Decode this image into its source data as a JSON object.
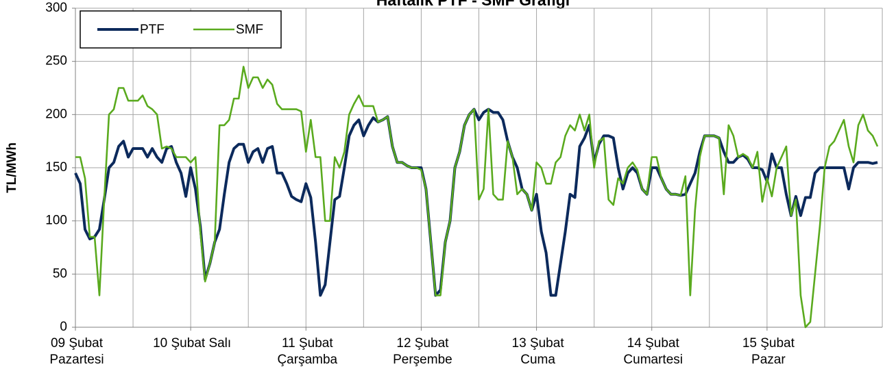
{
  "chart_data": {
    "type": "line",
    "title": "Haftalık PTF - SMF Grafiği",
    "y_label": "TL/MWh",
    "x": [
      0,
      1,
      2,
      3,
      4,
      5,
      6,
      7,
      8,
      9,
      10,
      11,
      12,
      13,
      14,
      15,
      16,
      17,
      18,
      19,
      20,
      21,
      22,
      23,
      24,
      25,
      26,
      27,
      28,
      29,
      30,
      31,
      32,
      33,
      34,
      35,
      36,
      37,
      38,
      39,
      40,
      41,
      42,
      43,
      44,
      45,
      46,
      47,
      48,
      49,
      50,
      51,
      52,
      53,
      54,
      55,
      56,
      57,
      58,
      59,
      60,
      61,
      62,
      63,
      64,
      65,
      66,
      67,
      68,
      69,
      70,
      71,
      72,
      73,
      74,
      75,
      76,
      77,
      78,
      79,
      80,
      81,
      82,
      83,
      84,
      85,
      86,
      87,
      88,
      89,
      90,
      91,
      92,
      93,
      94,
      95,
      96,
      97,
      98,
      99,
      100,
      101,
      102,
      103,
      104,
      105,
      106,
      107,
      108,
      109,
      110,
      111,
      112,
      113,
      114,
      115,
      116,
      117,
      118,
      119,
      120,
      121,
      122,
      123,
      124,
      125,
      126,
      127,
      128,
      129,
      130,
      131,
      132,
      133,
      134,
      135,
      136,
      137,
      138,
      139,
      140,
      141,
      142,
      143,
      144,
      145,
      146,
      147,
      148,
      149,
      150,
      151,
      152,
      153,
      154,
      155,
      156,
      157,
      158,
      159,
      160,
      161,
      162,
      163,
      164,
      165,
      166,
      167
    ],
    "series": [
      {
        "name": "PTF",
        "color": "#0c2a5c",
        "values": [
          145,
          135,
          92,
          83,
          85,
          92,
          120,
          150,
          155,
          170,
          175,
          160,
          168,
          168,
          168,
          160,
          168,
          160,
          155,
          168,
          170,
          155,
          145,
          123,
          150,
          130,
          95,
          45,
          60,
          80,
          92,
          125,
          155,
          168,
          172,
          172,
          155,
          165,
          168,
          155,
          168,
          170,
          145,
          145,
          135,
          123,
          120,
          118,
          135,
          122,
          80,
          30,
          40,
          80,
          120,
          123,
          150,
          180,
          190,
          195,
          180,
          190,
          197,
          193,
          195,
          198,
          170,
          155,
          155,
          152,
          150,
          150,
          150,
          130,
          80,
          30,
          35,
          80,
          100,
          150,
          165,
          190,
          200,
          205,
          195,
          202,
          205,
          202,
          202,
          195,
          175,
          160,
          150,
          130,
          125,
          110,
          125,
          90,
          70,
          30,
          30,
          60,
          90,
          125,
          122,
          170,
          178,
          190,
          155,
          172,
          180,
          180,
          178,
          150,
          130,
          145,
          150,
          145,
          130,
          125,
          150,
          150,
          140,
          130,
          125,
          125,
          124,
          125,
          135,
          145,
          165,
          180,
          180,
          180,
          178,
          165,
          155,
          155,
          160,
          162,
          158,
          150,
          150,
          148,
          137,
          163,
          150,
          150,
          125,
          105,
          123,
          105,
          122,
          122,
          145,
          150,
          150,
          150,
          150,
          150,
          150,
          130,
          150,
          155,
          155,
          155,
          154,
          155
        ]
      },
      {
        "name": "SMF",
        "color": "#5aaa1e",
        "values": [
          160,
          160,
          140,
          85,
          85,
          30,
          120,
          200,
          205,
          225,
          225,
          213,
          213,
          213,
          218,
          208,
          205,
          200,
          168,
          170,
          168,
          160,
          160,
          160,
          155,
          160,
          90,
          43,
          60,
          80,
          190,
          190,
          195,
          215,
          215,
          245,
          225,
          235,
          235,
          225,
          233,
          228,
          210,
          205,
          205,
          205,
          205,
          203,
          165,
          195,
          160,
          160,
          100,
          100,
          160,
          150,
          165,
          200,
          210,
          218,
          208,
          208,
          208,
          193,
          195,
          198,
          170,
          155,
          155,
          152,
          150,
          150,
          148,
          130,
          80,
          30,
          30,
          80,
          100,
          150,
          165,
          190,
          200,
          205,
          120,
          130,
          205,
          125,
          120,
          120,
          175,
          160,
          125,
          130,
          125,
          110,
          155,
          150,
          135,
          135,
          155,
          160,
          180,
          190,
          185,
          200,
          185,
          200,
          150,
          175,
          178,
          120,
          115,
          140,
          135,
          150,
          155,
          148,
          130,
          125,
          160,
          160,
          140,
          130,
          125,
          125,
          124,
          142,
          30,
          110,
          160,
          180,
          180,
          180,
          178,
          125,
          190,
          180,
          160,
          163,
          160,
          150,
          165,
          118,
          140,
          123,
          150,
          160,
          170,
          105,
          120,
          30,
          0,
          5,
          50,
          95,
          150,
          170,
          175,
          185,
          195,
          170,
          155,
          190,
          200,
          185,
          180,
          170
        ]
      }
    ],
    "xlim": [
      0,
      168
    ],
    "xticks": [
      {
        "value": 0,
        "label": "09 Şubat\nPazartesi"
      },
      {
        "value": 24,
        "label": "10 Şubat Salı"
      },
      {
        "value": 48,
        "label": "11 Şubat\nÇarşamba"
      },
      {
        "value": 72,
        "label": "12 Şubat\nPerşembe"
      },
      {
        "value": 96,
        "label": "13 Şubat\nCuma"
      },
      {
        "value": 120,
        "label": "14 Şubat\nCumartesi"
      },
      {
        "value": 144,
        "label": "15 Şubat\nPazar"
      }
    ],
    "xminor_ticks": [
      12,
      36,
      60,
      84,
      108,
      132,
      156,
      168
    ],
    "ylim": [
      0,
      300
    ],
    "yticks": [
      0,
      50,
      100,
      150,
      200,
      250,
      300
    ],
    "grid": true,
    "legend": "top-left"
  }
}
